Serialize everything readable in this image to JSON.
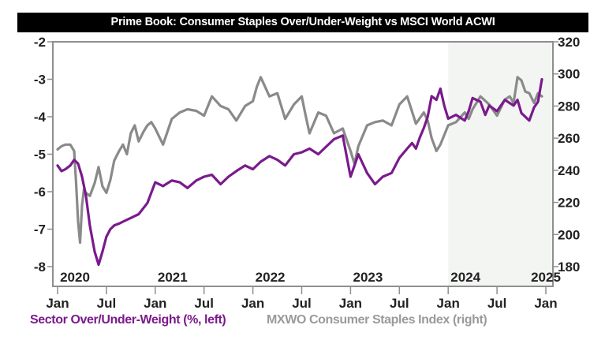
{
  "chart_data": {
    "type": "line",
    "title": "Prime Book: Consumer Staples Over/Under-Weight vs MSCI World ACWI",
    "xlabel": "",
    "ylabel_left": "Sector Over/Under-Weight (%, left)",
    "ylabel_right": "MXWO Consumer Staples Index (right)",
    "x_range": [
      "2020-01",
      "2025-01"
    ],
    "ylim_left": [
      -8,
      -2
    ],
    "ylim_right": [
      180,
      320
    ],
    "left_ticks": [
      "-2",
      "-3",
      "-4",
      "-5",
      "-6",
      "-7",
      "-8"
    ],
    "right_ticks": [
      "320",
      "300",
      "280",
      "260",
      "240",
      "220",
      "200",
      "180"
    ],
    "x_ticks": [
      "Jan",
      "Jul",
      "Jan",
      "Jul",
      "Jan",
      "Jul",
      "Jan",
      "Jul",
      "Jan",
      "Jul",
      "Jan"
    ],
    "year_labels": [
      "2020",
      "2021",
      "2022",
      "2023",
      "2024",
      "2025"
    ],
    "shaded_region": {
      "from": "2024-01",
      "to": "2024-12",
      "color": "#f3f5f3"
    },
    "grid": false,
    "legend": "bottom",
    "series": [
      {
        "name": "Sector Over/Under-Weight (%, left)",
        "axis": "left",
        "color": "#7a1a8c",
        "x": [
          2020.0,
          2020.04,
          2020.08,
          2020.13,
          2020.17,
          2020.21,
          2020.25,
          2020.29,
          2020.33,
          2020.38,
          2020.42,
          2020.46,
          2020.5,
          2020.54,
          2020.58,
          2020.63,
          2020.67,
          2020.75,
          2020.83,
          2020.92,
          2021.0,
          2021.08,
          2021.17,
          2021.25,
          2021.33,
          2021.42,
          2021.5,
          2021.58,
          2021.67,
          2021.75,
          2021.83,
          2021.92,
          2022.0,
          2022.08,
          2022.17,
          2022.25,
          2022.33,
          2022.42,
          2022.5,
          2022.58,
          2022.67,
          2022.75,
          2022.83,
          2022.92,
          2023.0,
          2023.04,
          2023.08,
          2023.17,
          2023.25,
          2023.33,
          2023.42,
          2023.5,
          2023.58,
          2023.63,
          2023.67,
          2023.71,
          2023.75,
          2023.79,
          2023.83,
          2023.88,
          2023.92,
          2023.96,
          2024.0,
          2024.08,
          2024.17,
          2024.21,
          2024.25,
          2024.33,
          2024.38,
          2024.42,
          2024.5,
          2024.58,
          2024.67,
          2024.71,
          2024.75,
          2024.83,
          2024.88,
          2024.92,
          2024.96
        ],
        "values": [
          -5.3,
          -5.45,
          -5.4,
          -5.3,
          -5.15,
          -5.25,
          -5.6,
          -6.1,
          -6.9,
          -7.6,
          -7.95,
          -7.6,
          -7.2,
          -7.0,
          -6.9,
          -6.85,
          -6.8,
          -6.7,
          -6.6,
          -6.3,
          -5.75,
          -5.85,
          -5.7,
          -5.75,
          -5.9,
          -5.7,
          -5.6,
          -5.55,
          -5.8,
          -5.6,
          -5.45,
          -5.3,
          -5.4,
          -5.2,
          -5.05,
          -5.15,
          -5.3,
          -5.0,
          -4.95,
          -4.85,
          -5.0,
          -4.8,
          -4.6,
          -4.5,
          -5.6,
          -5.3,
          -5.0,
          -5.5,
          -5.8,
          -5.6,
          -5.5,
          -5.1,
          -4.85,
          -4.7,
          -4.85,
          -4.55,
          -4.3,
          -4.0,
          -3.45,
          -3.55,
          -3.25,
          -3.7,
          -4.05,
          -3.95,
          -4.1,
          -3.85,
          -3.5,
          -3.6,
          -3.95,
          -3.7,
          -3.85,
          -3.55,
          -3.7,
          -3.55,
          -3.9,
          -4.1,
          -3.75,
          -3.6,
          -3.0
        ]
      },
      {
        "name": "MXWO Consumer Staples Index (right)",
        "axis": "right",
        "color": "#8a8a8a",
        "x": [
          2020.0,
          2020.04,
          2020.08,
          2020.13,
          2020.17,
          2020.19,
          2020.21,
          2020.23,
          2020.25,
          2020.27,
          2020.29,
          2020.33,
          2020.38,
          2020.42,
          2020.46,
          2020.5,
          2020.54,
          2020.58,
          2020.63,
          2020.67,
          2020.71,
          2020.75,
          2020.79,
          2020.83,
          2020.88,
          2020.92,
          2020.96,
          2021.0,
          2021.08,
          2021.17,
          2021.25,
          2021.33,
          2021.42,
          2021.5,
          2021.58,
          2021.67,
          2021.75,
          2021.83,
          2021.92,
          2022.0,
          2022.04,
          2022.08,
          2022.17,
          2022.25,
          2022.33,
          2022.42,
          2022.5,
          2022.54,
          2022.58,
          2022.67,
          2022.75,
          2022.83,
          2022.92,
          2023.0,
          2023.04,
          2023.08,
          2023.17,
          2023.25,
          2023.33,
          2023.42,
          2023.5,
          2023.58,
          2023.67,
          2023.75,
          2023.79,
          2023.83,
          2023.88,
          2023.92,
          2024.0,
          2024.08,
          2024.17,
          2024.21,
          2024.25,
          2024.33,
          2024.42,
          2024.5,
          2024.58,
          2024.63,
          2024.67,
          2024.71,
          2024.75,
          2024.79,
          2024.83,
          2024.88,
          2024.92,
          2024.96
        ],
        "values": [
          253,
          255,
          256,
          256,
          252,
          232,
          208,
          195,
          218,
          228,
          226,
          224,
          232,
          242,
          230,
          226,
          234,
          246,
          252,
          256,
          250,
          263,
          268,
          258,
          264,
          268,
          270,
          266,
          256,
          272,
          276,
          278,
          277,
          274,
          286,
          280,
          278,
          271,
          280,
          283,
          292,
          298,
          286,
          288,
          272,
          281,
          286,
          274,
          263,
          276,
          274,
          263,
          266,
          252,
          244,
          255,
          268,
          270,
          271,
          268,
          281,
          286,
          269,
          276,
          271,
          260,
          252,
          256,
          268,
          270,
          276,
          272,
          278,
          286,
          281,
          274,
          284,
          286,
          282,
          298,
          296,
          289,
          288,
          282,
          288,
          286
        ]
      }
    ]
  }
}
